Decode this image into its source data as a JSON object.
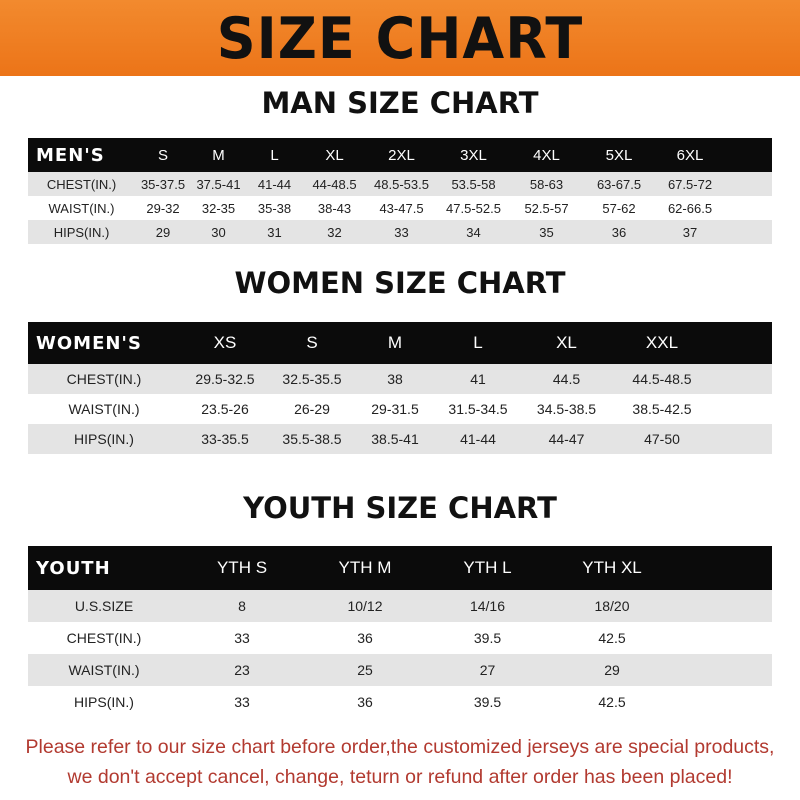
{
  "banner": {
    "title": "SIZE CHART",
    "color": "#ee7a1f"
  },
  "men": {
    "title": "MAN SIZE CHART",
    "header": [
      "MEN'S",
      "S",
      "M",
      "L",
      "XL",
      "2XL",
      "3XL",
      "4XL",
      "5XL",
      "6XL"
    ],
    "rows": [
      [
        "CHEST(IN.)",
        "35-37.5",
        "37.5-41",
        "41-44",
        "44-48.5",
        "48.5-53.5",
        "53.5-58",
        "58-63",
        "63-67.5",
        "67.5-72"
      ],
      [
        "WAIST(IN.)",
        "29-32",
        "32-35",
        "35-38",
        "38-43",
        "43-47.5",
        "47.5-52.5",
        "52.5-57",
        "57-62",
        "62-66.5"
      ],
      [
        "HIPS(IN.)",
        "29",
        "30",
        "31",
        "32",
        "33",
        "34",
        "35",
        "36",
        "37"
      ]
    ]
  },
  "women": {
    "title": "WOMEN SIZE CHART",
    "header": [
      "WOMEN'S",
      "XS",
      "S",
      "M",
      "L",
      "XL",
      "XXL"
    ],
    "rows": [
      [
        "CHEST(IN.)",
        "29.5-32.5",
        "32.5-35.5",
        "38",
        "41",
        "44.5",
        "44.5-48.5"
      ],
      [
        "WAIST(IN.)",
        "23.5-26",
        "26-29",
        "29-31.5",
        "31.5-34.5",
        "34.5-38.5",
        "38.5-42.5"
      ],
      [
        "HIPS(IN.)",
        "33-35.5",
        "35.5-38.5",
        "38.5-41",
        "41-44",
        "44-47",
        "47-50"
      ]
    ]
  },
  "youth": {
    "title": "YOUTH SIZE CHART",
    "header": [
      "YOUTH",
      "YTH S",
      "YTH M",
      "YTH L",
      "YTH XL"
    ],
    "rows": [
      [
        "U.S.SIZE",
        "8",
        "10/12",
        "14/16",
        "18/20"
      ],
      [
        "CHEST(IN.)",
        "33",
        "36",
        "39.5",
        "42.5"
      ],
      [
        "WAIST(IN.)",
        "23",
        "25",
        "27",
        "29"
      ],
      [
        "HIPS(IN.)",
        "33",
        "36",
        "39.5",
        "42.5"
      ]
    ]
  },
  "notice": {
    "line1": "Please refer to our size chart before order,the customized jerseys are special products,",
    "line2": "we don't accept cancel, change, teturn or refund after order has been placed!",
    "color": "#b23a30"
  }
}
